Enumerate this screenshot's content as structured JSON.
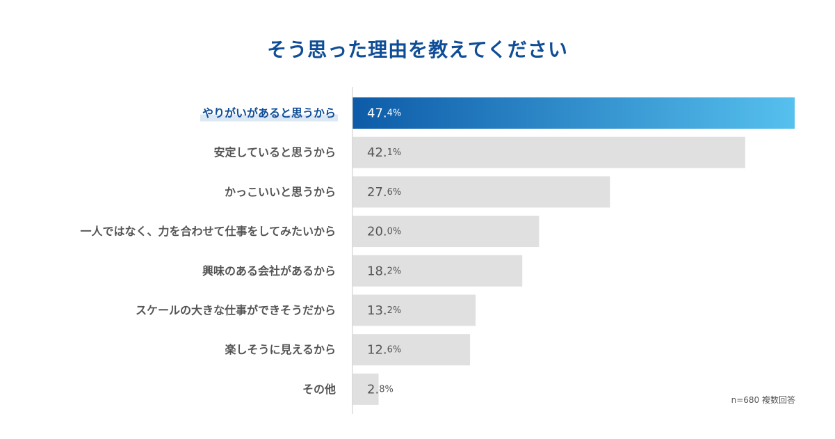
{
  "chart_data": {
    "type": "bar",
    "orientation": "horizontal",
    "title": "そう思った理由を教えてください",
    "categories": [
      "やりがいがあると思うから",
      "安定していると思うから",
      "かっこいいと思うから",
      "一人ではなく、力を合わせて仕事をしてみたいから",
      "興味のある会社があるから",
      "スケールの大きな仕事ができそうだから",
      "楽しそうに見えるから",
      "その他"
    ],
    "values": [
      47.4,
      42.1,
      27.6,
      20.0,
      18.2,
      13.2,
      12.6,
      2.8
    ],
    "value_labels": [
      {
        "main": "47.",
        "small": "4%"
      },
      {
        "main": "42.",
        "small": "1%"
      },
      {
        "main": "27.",
        "small": "6%"
      },
      {
        "main": "20.",
        "small": "0%"
      },
      {
        "main": "18.",
        "small": "2%"
      },
      {
        "main": "13.",
        "small": "2%"
      },
      {
        "main": "12.",
        "small": "6%"
      },
      {
        "main": "2.",
        "small": "8%"
      }
    ],
    "highlight_index": 0,
    "xlim": [
      0,
      47.4
    ],
    "note": "n=680 複数回答",
    "colors": {
      "title": "#0f4d97",
      "highlight_start": "#0d5ba8",
      "highlight_end": "#56c0ee",
      "bar": "#e0e0e0",
      "label": "#555555",
      "highlight_label": "#0f4d97",
      "highlight_label_bg": "#dde8f5",
      "value_text": "#555555",
      "highlight_value_text": "#ffffff",
      "axis": "#c8c8c8"
    }
  }
}
